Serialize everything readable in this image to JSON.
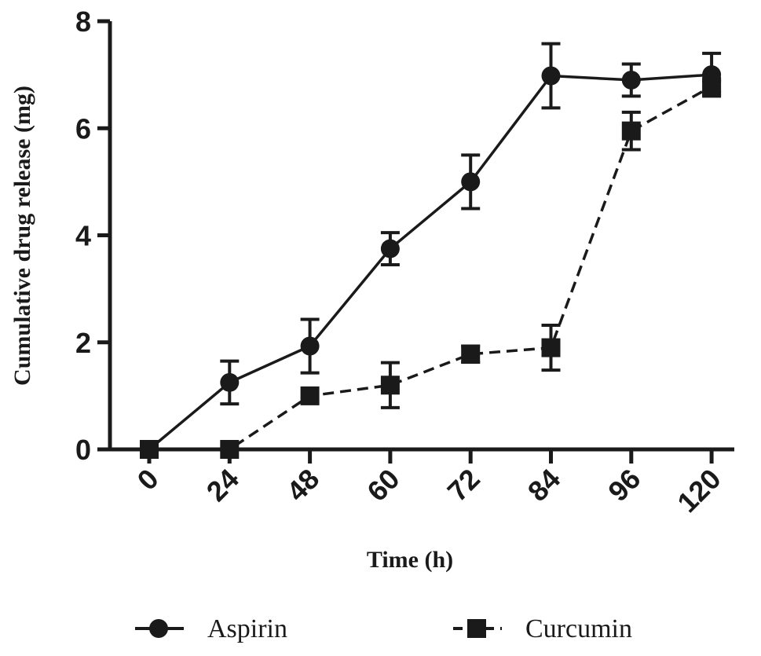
{
  "chart_data": {
    "type": "line",
    "title": "",
    "xlabel": "Time (h)",
    "ylabel": "Cumulative drug release (mg)",
    "categories": [
      "0",
      "24",
      "48",
      "60",
      "72",
      "84",
      "96",
      "120"
    ],
    "ylim": [
      0,
      8
    ],
    "yticks": [
      "0",
      "2",
      "4",
      "6",
      "8"
    ],
    "grid": false,
    "legend_position": "bottom",
    "series": [
      {
        "name": "Aspirin",
        "marker": "circle",
        "line_style": "solid",
        "color": "#1a1a1a",
        "values": [
          0,
          1.25,
          1.93,
          3.75,
          5.0,
          6.98,
          6.9,
          7.0
        ],
        "errors": [
          0,
          0.4,
          0.5,
          0.3,
          0.5,
          0.6,
          0.3,
          0.4
        ]
      },
      {
        "name": "Curcumin",
        "marker": "square",
        "line_style": "dashed",
        "color": "#1a1a1a",
        "values": [
          0,
          0,
          1.0,
          1.2,
          1.78,
          1.9,
          5.95,
          6.78
        ],
        "errors": [
          0,
          0,
          0.0,
          0.42,
          0.15,
          0.42,
          0.35,
          0.1
        ]
      }
    ]
  }
}
